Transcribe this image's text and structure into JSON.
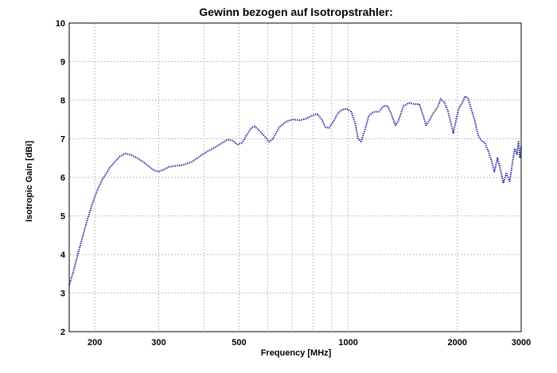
{
  "chart_data": {
    "type": "line",
    "title": "Gewinn bezogen auf Isotropstrahler:",
    "xlabel": "Frequency [MHz]",
    "ylabel": "Isotropic Gain [dBi]",
    "x_scale": "log",
    "xlim": [
      170,
      3000
    ],
    "ylim": [
      2,
      10
    ],
    "grid": true,
    "legend": "none",
    "colors": {
      "line": "#2a2aa6",
      "grid": "#bdbdbd",
      "frame": "#000000"
    },
    "x_ticks": [
      {
        "value": 200,
        "label": "200"
      },
      {
        "value": 300,
        "label": "300"
      },
      {
        "value": 500,
        "label": "500"
      },
      {
        "value": 1000,
        "label": "1000"
      },
      {
        "value": 2000,
        "label": "2000"
      },
      {
        "value": 3000,
        "label": "3000"
      }
    ],
    "x_gridlines": [
      200,
      300,
      400,
      500,
      600,
      700,
      800,
      900,
      1000,
      2000,
      3000
    ],
    "y_ticks": [
      {
        "value": 2,
        "label": "2"
      },
      {
        "value": 3,
        "label": "3"
      },
      {
        "value": 4,
        "label": "4"
      },
      {
        "value": 5,
        "label": "5"
      },
      {
        "value": 6,
        "label": "6"
      },
      {
        "value": 7,
        "label": "7"
      },
      {
        "value": 8,
        "label": "8"
      },
      {
        "value": 9,
        "label": "9"
      },
      {
        "value": 10,
        "label": "10"
      }
    ],
    "series": [
      {
        "points": [
          [
            170,
            3.2
          ],
          [
            175,
            3.6
          ],
          [
            180,
            4.05
          ],
          [
            185,
            4.45
          ],
          [
            190,
            4.85
          ],
          [
            195,
            5.2
          ],
          [
            200,
            5.5
          ],
          [
            205,
            5.75
          ],
          [
            210,
            5.95
          ],
          [
            215,
            6.1
          ],
          [
            220,
            6.25
          ],
          [
            228,
            6.42
          ],
          [
            235,
            6.55
          ],
          [
            243,
            6.62
          ],
          [
            252,
            6.58
          ],
          [
            262,
            6.5
          ],
          [
            272,
            6.4
          ],
          [
            282,
            6.28
          ],
          [
            292,
            6.18
          ],
          [
            300,
            6.15
          ],
          [
            310,
            6.2
          ],
          [
            320,
            6.27
          ],
          [
            335,
            6.3
          ],
          [
            350,
            6.32
          ],
          [
            370,
            6.4
          ],
          [
            390,
            6.55
          ],
          [
            410,
            6.68
          ],
          [
            430,
            6.78
          ],
          [
            450,
            6.9
          ],
          [
            465,
            6.98
          ],
          [
            480,
            6.95
          ],
          [
            495,
            6.85
          ],
          [
            510,
            6.9
          ],
          [
            525,
            7.1
          ],
          [
            540,
            7.28
          ],
          [
            553,
            7.32
          ],
          [
            570,
            7.2
          ],
          [
            590,
            7.05
          ],
          [
            605,
            6.92
          ],
          [
            620,
            7.0
          ],
          [
            645,
            7.3
          ],
          [
            675,
            7.45
          ],
          [
            705,
            7.5
          ],
          [
            735,
            7.48
          ],
          [
            765,
            7.52
          ],
          [
            795,
            7.6
          ],
          [
            820,
            7.65
          ],
          [
            845,
            7.5
          ],
          [
            865,
            7.3
          ],
          [
            885,
            7.28
          ],
          [
            910,
            7.45
          ],
          [
            935,
            7.65
          ],
          [
            960,
            7.75
          ],
          [
            990,
            7.78
          ],
          [
            1020,
            7.7
          ],
          [
            1045,
            7.4
          ],
          [
            1065,
            7.0
          ],
          [
            1085,
            6.93
          ],
          [
            1110,
            7.2
          ],
          [
            1140,
            7.6
          ],
          [
            1175,
            7.7
          ],
          [
            1215,
            7.7
          ],
          [
            1250,
            7.85
          ],
          [
            1285,
            7.85
          ],
          [
            1320,
            7.6
          ],
          [
            1350,
            7.35
          ],
          [
            1380,
            7.5
          ],
          [
            1420,
            7.85
          ],
          [
            1470,
            7.93
          ],
          [
            1520,
            7.9
          ],
          [
            1570,
            7.9
          ],
          [
            1610,
            7.6
          ],
          [
            1640,
            7.35
          ],
          [
            1680,
            7.5
          ],
          [
            1720,
            7.68
          ],
          [
            1760,
            7.8
          ],
          [
            1800,
            8.03
          ],
          [
            1840,
            7.95
          ],
          [
            1880,
            7.75
          ],
          [
            1920,
            7.4
          ],
          [
            1950,
            7.15
          ],
          [
            1985,
            7.5
          ],
          [
            2020,
            7.8
          ],
          [
            2060,
            7.92
          ],
          [
            2100,
            8.1
          ],
          [
            2140,
            8.05
          ],
          [
            2180,
            7.8
          ],
          [
            2230,
            7.5
          ],
          [
            2280,
            7.1
          ],
          [
            2330,
            6.95
          ],
          [
            2380,
            6.9
          ],
          [
            2430,
            6.7
          ],
          [
            2480,
            6.45
          ],
          [
            2530,
            6.15
          ],
          [
            2580,
            6.5
          ],
          [
            2630,
            6.2
          ],
          [
            2680,
            5.85
          ],
          [
            2730,
            6.1
          ],
          [
            2790,
            5.9
          ],
          [
            2840,
            6.4
          ],
          [
            2880,
            6.75
          ],
          [
            2920,
            6.6
          ],
          [
            2950,
            6.95
          ],
          [
            2975,
            6.5
          ],
          [
            3000,
            6.8
          ]
        ]
      }
    ]
  }
}
